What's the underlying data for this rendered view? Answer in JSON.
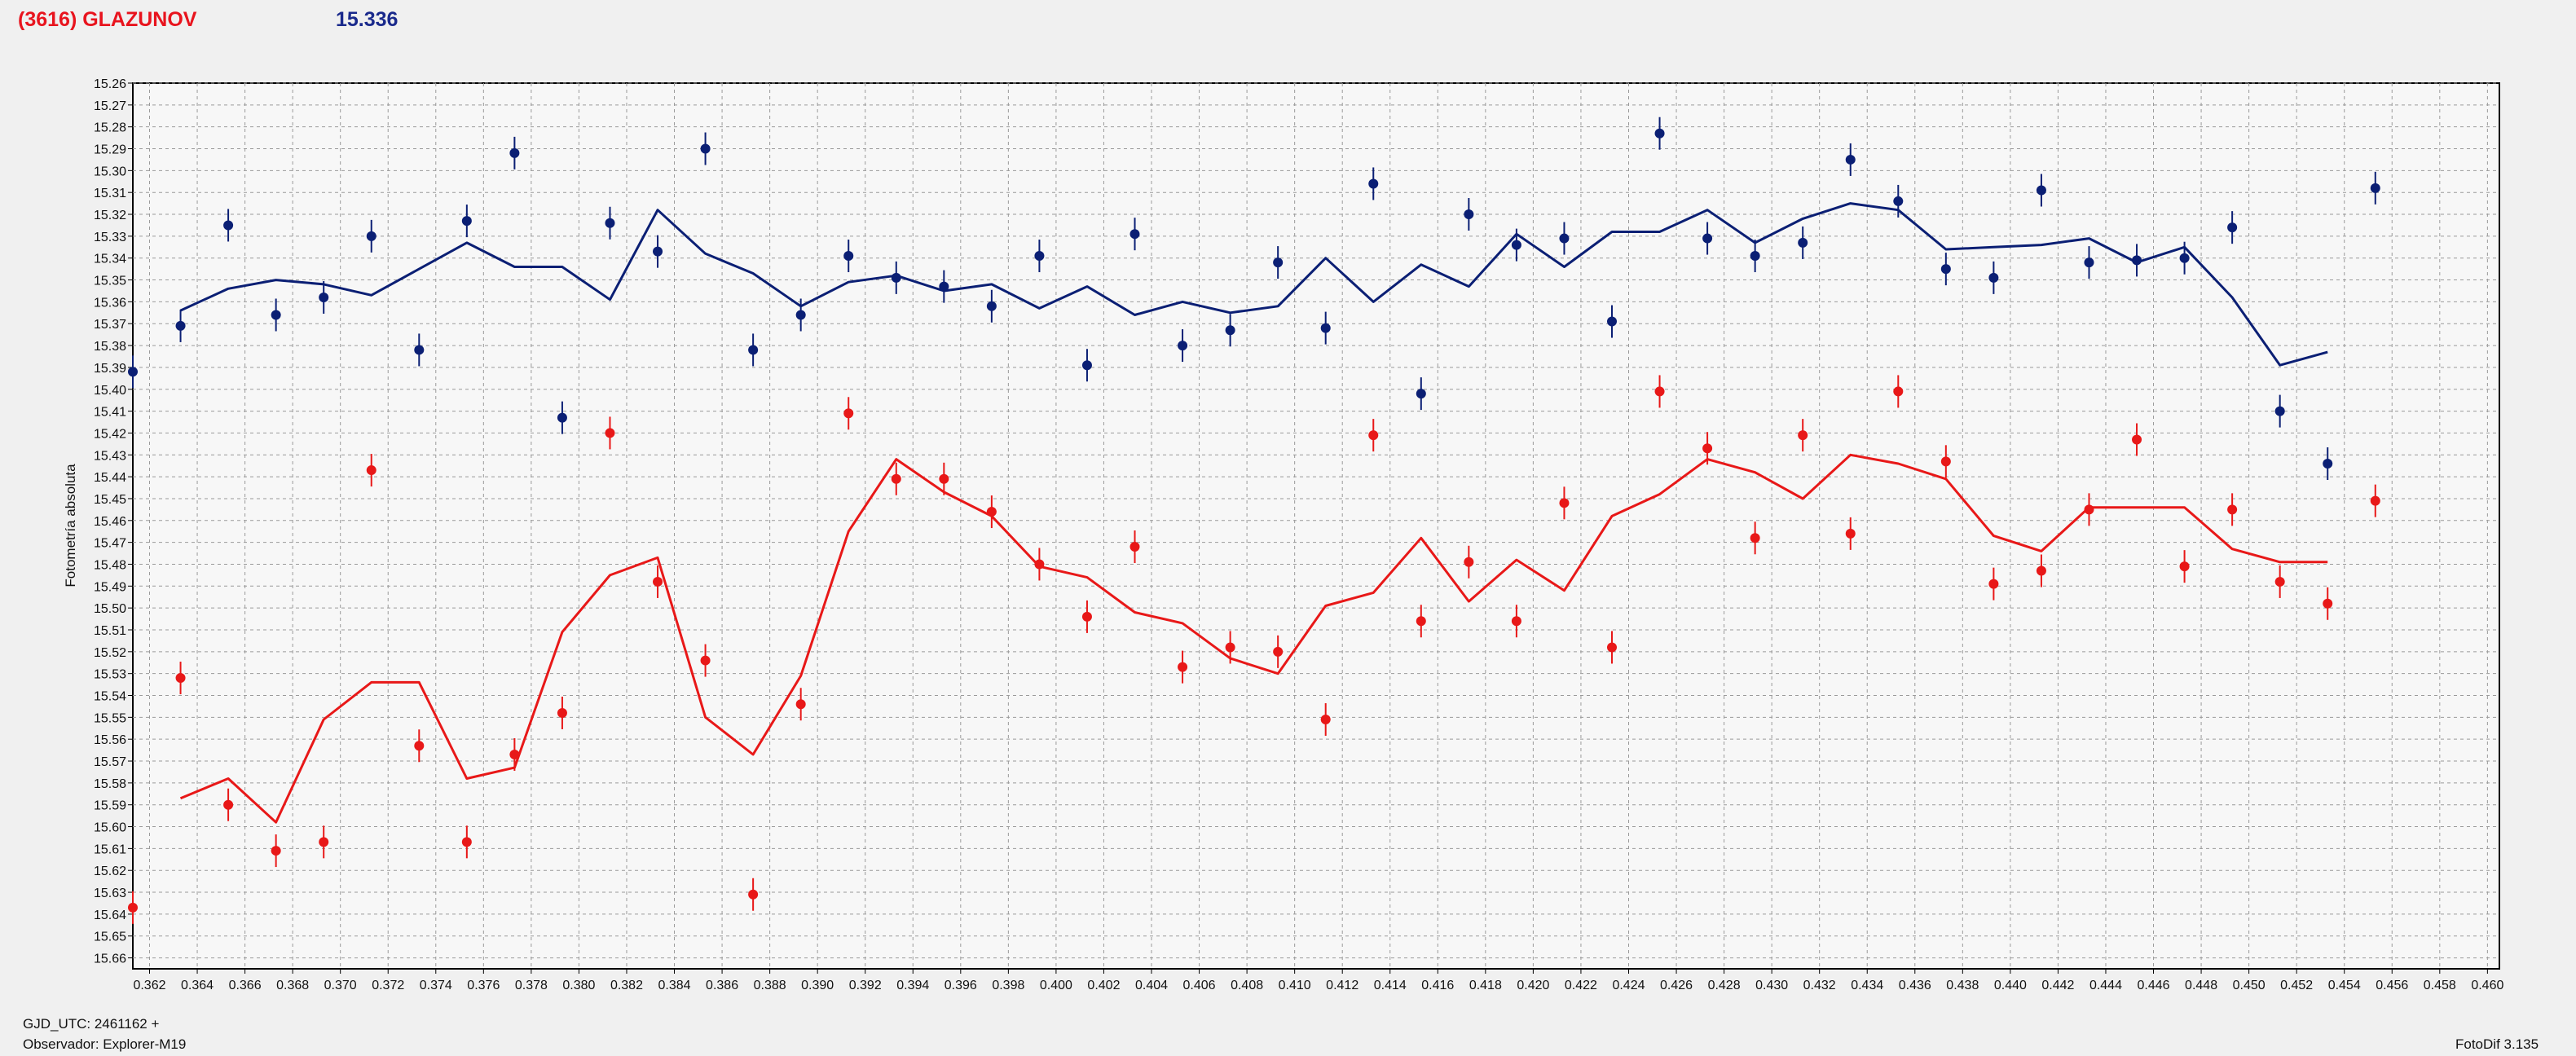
{
  "header": {
    "title": "(3616) GLAZUNOV",
    "value": "15.336"
  },
  "footer": {
    "gjd": "GJD_UTC: 2461162 +",
    "observer": "Observador: Explorer-M19",
    "software": "FotoDif 3.135"
  },
  "colors": {
    "blue": "#0b1f74",
    "red": "#e81818",
    "grid": "#9a9a9a",
    "plot_bg": "#f7f7f7"
  },
  "chart_data": {
    "type": "scatter",
    "title": "",
    "xlabel": "",
    "ylabel": "Fotometría absoluta",
    "xlim": [
      0.3613,
      0.4605
    ],
    "ylim": [
      15.26,
      15.665
    ],
    "y_inverted": true,
    "grid": true,
    "x_ticks": [
      "0.362",
      "0.364",
      "0.366",
      "0.368",
      "0.370",
      "0.372",
      "0.374",
      "0.376",
      "0.378",
      "0.380",
      "0.382",
      "0.384",
      "0.386",
      "0.388",
      "0.390",
      "0.392",
      "0.394",
      "0.396",
      "0.398",
      "0.400",
      "0.402",
      "0.404",
      "0.406",
      "0.408",
      "0.410",
      "0.412",
      "0.414",
      "0.416",
      "0.418",
      "0.420",
      "0.422",
      "0.424",
      "0.426",
      "0.428",
      "0.430",
      "0.432",
      "0.434",
      "0.436",
      "0.438",
      "0.440",
      "0.442",
      "0.444",
      "0.446",
      "0.448",
      "0.450",
      "0.452",
      "0.454",
      "0.456",
      "0.458",
      "0.460"
    ],
    "y_ticks": [
      "15.26",
      "15.27",
      "15.28",
      "15.29",
      "15.30",
      "15.31",
      "15.32",
      "15.33",
      "15.34",
      "15.35",
      "15.36",
      "15.37",
      "15.38",
      "15.39",
      "15.40",
      "15.41",
      "15.42",
      "15.43",
      "15.44",
      "15.45",
      "15.46",
      "15.47",
      "15.48",
      "15.49",
      "15.50",
      "15.51",
      "15.52",
      "15.53",
      "15.54",
      "15.55",
      "15.56",
      "15.57",
      "15.58",
      "15.59",
      "15.60",
      "15.61",
      "15.62",
      "15.63",
      "15.64",
      "15.65",
      "15.66"
    ],
    "series": [
      {
        "color": "#0b1f74",
        "points": [
          [
            0.3613,
            15.392
          ],
          [
            0.3633,
            15.371
          ],
          [
            0.3653,
            15.325
          ],
          [
            0.3673,
            15.366
          ],
          [
            0.3693,
            15.358
          ],
          [
            0.3713,
            15.33
          ],
          [
            0.3733,
            15.382
          ],
          [
            0.3753,
            15.323
          ],
          [
            0.3773,
            15.292
          ],
          [
            0.3793,
            15.413
          ],
          [
            0.3813,
            15.324
          ],
          [
            0.3833,
            15.337
          ],
          [
            0.3853,
            15.29
          ],
          [
            0.3873,
            15.382
          ],
          [
            0.3893,
            15.366
          ],
          [
            0.3913,
            15.339
          ],
          [
            0.3933,
            15.349
          ],
          [
            0.3953,
            15.353
          ],
          [
            0.3973,
            15.362
          ],
          [
            0.3993,
            15.339
          ],
          [
            0.4013,
            15.389
          ],
          [
            0.4033,
            15.329
          ],
          [
            0.4053,
            15.38
          ],
          [
            0.4073,
            15.373
          ],
          [
            0.4093,
            15.342
          ],
          [
            0.4113,
            15.372
          ],
          [
            0.4133,
            15.306
          ],
          [
            0.4153,
            15.402
          ],
          [
            0.4173,
            15.32
          ],
          [
            0.4193,
            15.334
          ],
          [
            0.4213,
            15.331
          ],
          [
            0.4233,
            15.369
          ],
          [
            0.4253,
            15.283
          ],
          [
            0.4273,
            15.331
          ],
          [
            0.4293,
            15.339
          ],
          [
            0.4313,
            15.333
          ],
          [
            0.4333,
            15.295
          ],
          [
            0.4353,
            15.314
          ],
          [
            0.4373,
            15.345
          ],
          [
            0.4393,
            15.349
          ],
          [
            0.4413,
            15.309
          ],
          [
            0.4433,
            15.342
          ],
          [
            0.4453,
            15.341
          ],
          [
            0.4473,
            15.34
          ],
          [
            0.4493,
            15.326
          ],
          [
            0.4513,
            15.41
          ],
          [
            0.4533,
            15.434
          ],
          [
            0.4553,
            15.308
          ]
        ],
        "line": [
          [
            0.3633,
            15.364
          ],
          [
            0.3653,
            15.354
          ],
          [
            0.3673,
            15.35
          ],
          [
            0.3693,
            15.352
          ],
          [
            0.3713,
            15.357
          ],
          [
            0.3733,
            15.345
          ],
          [
            0.3753,
            15.333
          ],
          [
            0.3773,
            15.344
          ],
          [
            0.3793,
            15.344
          ],
          [
            0.3813,
            15.359
          ],
          [
            0.3833,
            15.318
          ],
          [
            0.3853,
            15.338
          ],
          [
            0.3873,
            15.347
          ],
          [
            0.3893,
            15.362
          ],
          [
            0.3913,
            15.351
          ],
          [
            0.3933,
            15.348
          ],
          [
            0.3953,
            15.355
          ],
          [
            0.3973,
            15.352
          ],
          [
            0.3993,
            15.363
          ],
          [
            0.4013,
            15.353
          ],
          [
            0.4033,
            15.366
          ],
          [
            0.4053,
            15.36
          ],
          [
            0.4073,
            15.365
          ],
          [
            0.4093,
            15.362
          ],
          [
            0.4113,
            15.34
          ],
          [
            0.4133,
            15.36
          ],
          [
            0.4153,
            15.343
          ],
          [
            0.4173,
            15.353
          ],
          [
            0.4193,
            15.329
          ],
          [
            0.4213,
            15.344
          ],
          [
            0.4233,
            15.328
          ],
          [
            0.4253,
            15.328
          ],
          [
            0.4273,
            15.318
          ],
          [
            0.4293,
            15.333
          ],
          [
            0.4313,
            15.322
          ],
          [
            0.4333,
            15.315
          ],
          [
            0.4353,
            15.318
          ],
          [
            0.4373,
            15.336
          ],
          [
            0.4393,
            15.335
          ],
          [
            0.4413,
            15.334
          ],
          [
            0.4433,
            15.331
          ],
          [
            0.4453,
            15.342
          ],
          [
            0.4473,
            15.335
          ],
          [
            0.4493,
            15.358
          ],
          [
            0.4513,
            15.389
          ],
          [
            0.4533,
            15.383
          ]
        ]
      },
      {
        "color": "#e81818",
        "points": [
          [
            0.3613,
            15.637
          ],
          [
            0.3633,
            15.532
          ],
          [
            0.3653,
            15.59
          ],
          [
            0.3673,
            15.611
          ],
          [
            0.3693,
            15.607
          ],
          [
            0.3713,
            15.437
          ],
          [
            0.3733,
            15.563
          ],
          [
            0.3753,
            15.607
          ],
          [
            0.3773,
            15.567
          ],
          [
            0.3793,
            15.548
          ],
          [
            0.3813,
            15.42
          ],
          [
            0.3833,
            15.488
          ],
          [
            0.3853,
            15.524
          ],
          [
            0.3873,
            15.631
          ],
          [
            0.3893,
            15.544
          ],
          [
            0.3913,
            15.411
          ],
          [
            0.3933,
            15.441
          ],
          [
            0.3953,
            15.441
          ],
          [
            0.3973,
            15.456
          ],
          [
            0.3993,
            15.48
          ],
          [
            0.4013,
            15.504
          ],
          [
            0.4033,
            15.472
          ],
          [
            0.4053,
            15.527
          ],
          [
            0.4073,
            15.518
          ],
          [
            0.4093,
            15.52
          ],
          [
            0.4113,
            15.551
          ],
          [
            0.4133,
            15.421
          ],
          [
            0.4153,
            15.506
          ],
          [
            0.4173,
            15.479
          ],
          [
            0.4193,
            15.506
          ],
          [
            0.4213,
            15.452
          ],
          [
            0.4233,
            15.518
          ],
          [
            0.4253,
            15.401
          ],
          [
            0.4273,
            15.427
          ],
          [
            0.4293,
            15.468
          ],
          [
            0.4313,
            15.421
          ],
          [
            0.4333,
            15.466
          ],
          [
            0.4353,
            15.401
          ],
          [
            0.4373,
            15.433
          ],
          [
            0.4393,
            15.489
          ],
          [
            0.4413,
            15.483
          ],
          [
            0.4433,
            15.455
          ],
          [
            0.4453,
            15.423
          ],
          [
            0.4473,
            15.481
          ],
          [
            0.4493,
            15.455
          ],
          [
            0.4513,
            15.488
          ],
          [
            0.4533,
            15.498
          ],
          [
            0.4553,
            15.451
          ]
        ],
        "line": [
          [
            0.3633,
            15.587
          ],
          [
            0.3653,
            15.578
          ],
          [
            0.3673,
            15.598
          ],
          [
            0.3693,
            15.551
          ],
          [
            0.3713,
            15.534
          ],
          [
            0.3733,
            15.534
          ],
          [
            0.3753,
            15.578
          ],
          [
            0.3773,
            15.573
          ],
          [
            0.3793,
            15.511
          ],
          [
            0.3813,
            15.485
          ],
          [
            0.3833,
            15.477
          ],
          [
            0.3853,
            15.55
          ],
          [
            0.3873,
            15.567
          ],
          [
            0.3893,
            15.531
          ],
          [
            0.3913,
            15.465
          ],
          [
            0.3933,
            15.432
          ],
          [
            0.3953,
            15.447
          ],
          [
            0.3973,
            15.458
          ],
          [
            0.3993,
            15.481
          ],
          [
            0.4013,
            15.486
          ],
          [
            0.4033,
            15.502
          ],
          [
            0.4053,
            15.507
          ],
          [
            0.4073,
            15.523
          ],
          [
            0.4093,
            15.53
          ],
          [
            0.4113,
            15.499
          ],
          [
            0.4133,
            15.493
          ],
          [
            0.4153,
            15.468
          ],
          [
            0.4173,
            15.497
          ],
          [
            0.4193,
            15.478
          ],
          [
            0.4213,
            15.492
          ],
          [
            0.4233,
            15.458
          ],
          [
            0.4253,
            15.448
          ],
          [
            0.4273,
            15.432
          ],
          [
            0.4293,
            15.438
          ],
          [
            0.4313,
            15.45
          ],
          [
            0.4333,
            15.43
          ],
          [
            0.4353,
            15.434
          ],
          [
            0.4373,
            15.441
          ],
          [
            0.4393,
            15.467
          ],
          [
            0.4413,
            15.474
          ],
          [
            0.4433,
            15.454
          ],
          [
            0.4453,
            15.454
          ],
          [
            0.4473,
            15.454
          ],
          [
            0.4493,
            15.473
          ],
          [
            0.4513,
            15.479
          ],
          [
            0.4533,
            15.479
          ]
        ]
      }
    ]
  }
}
